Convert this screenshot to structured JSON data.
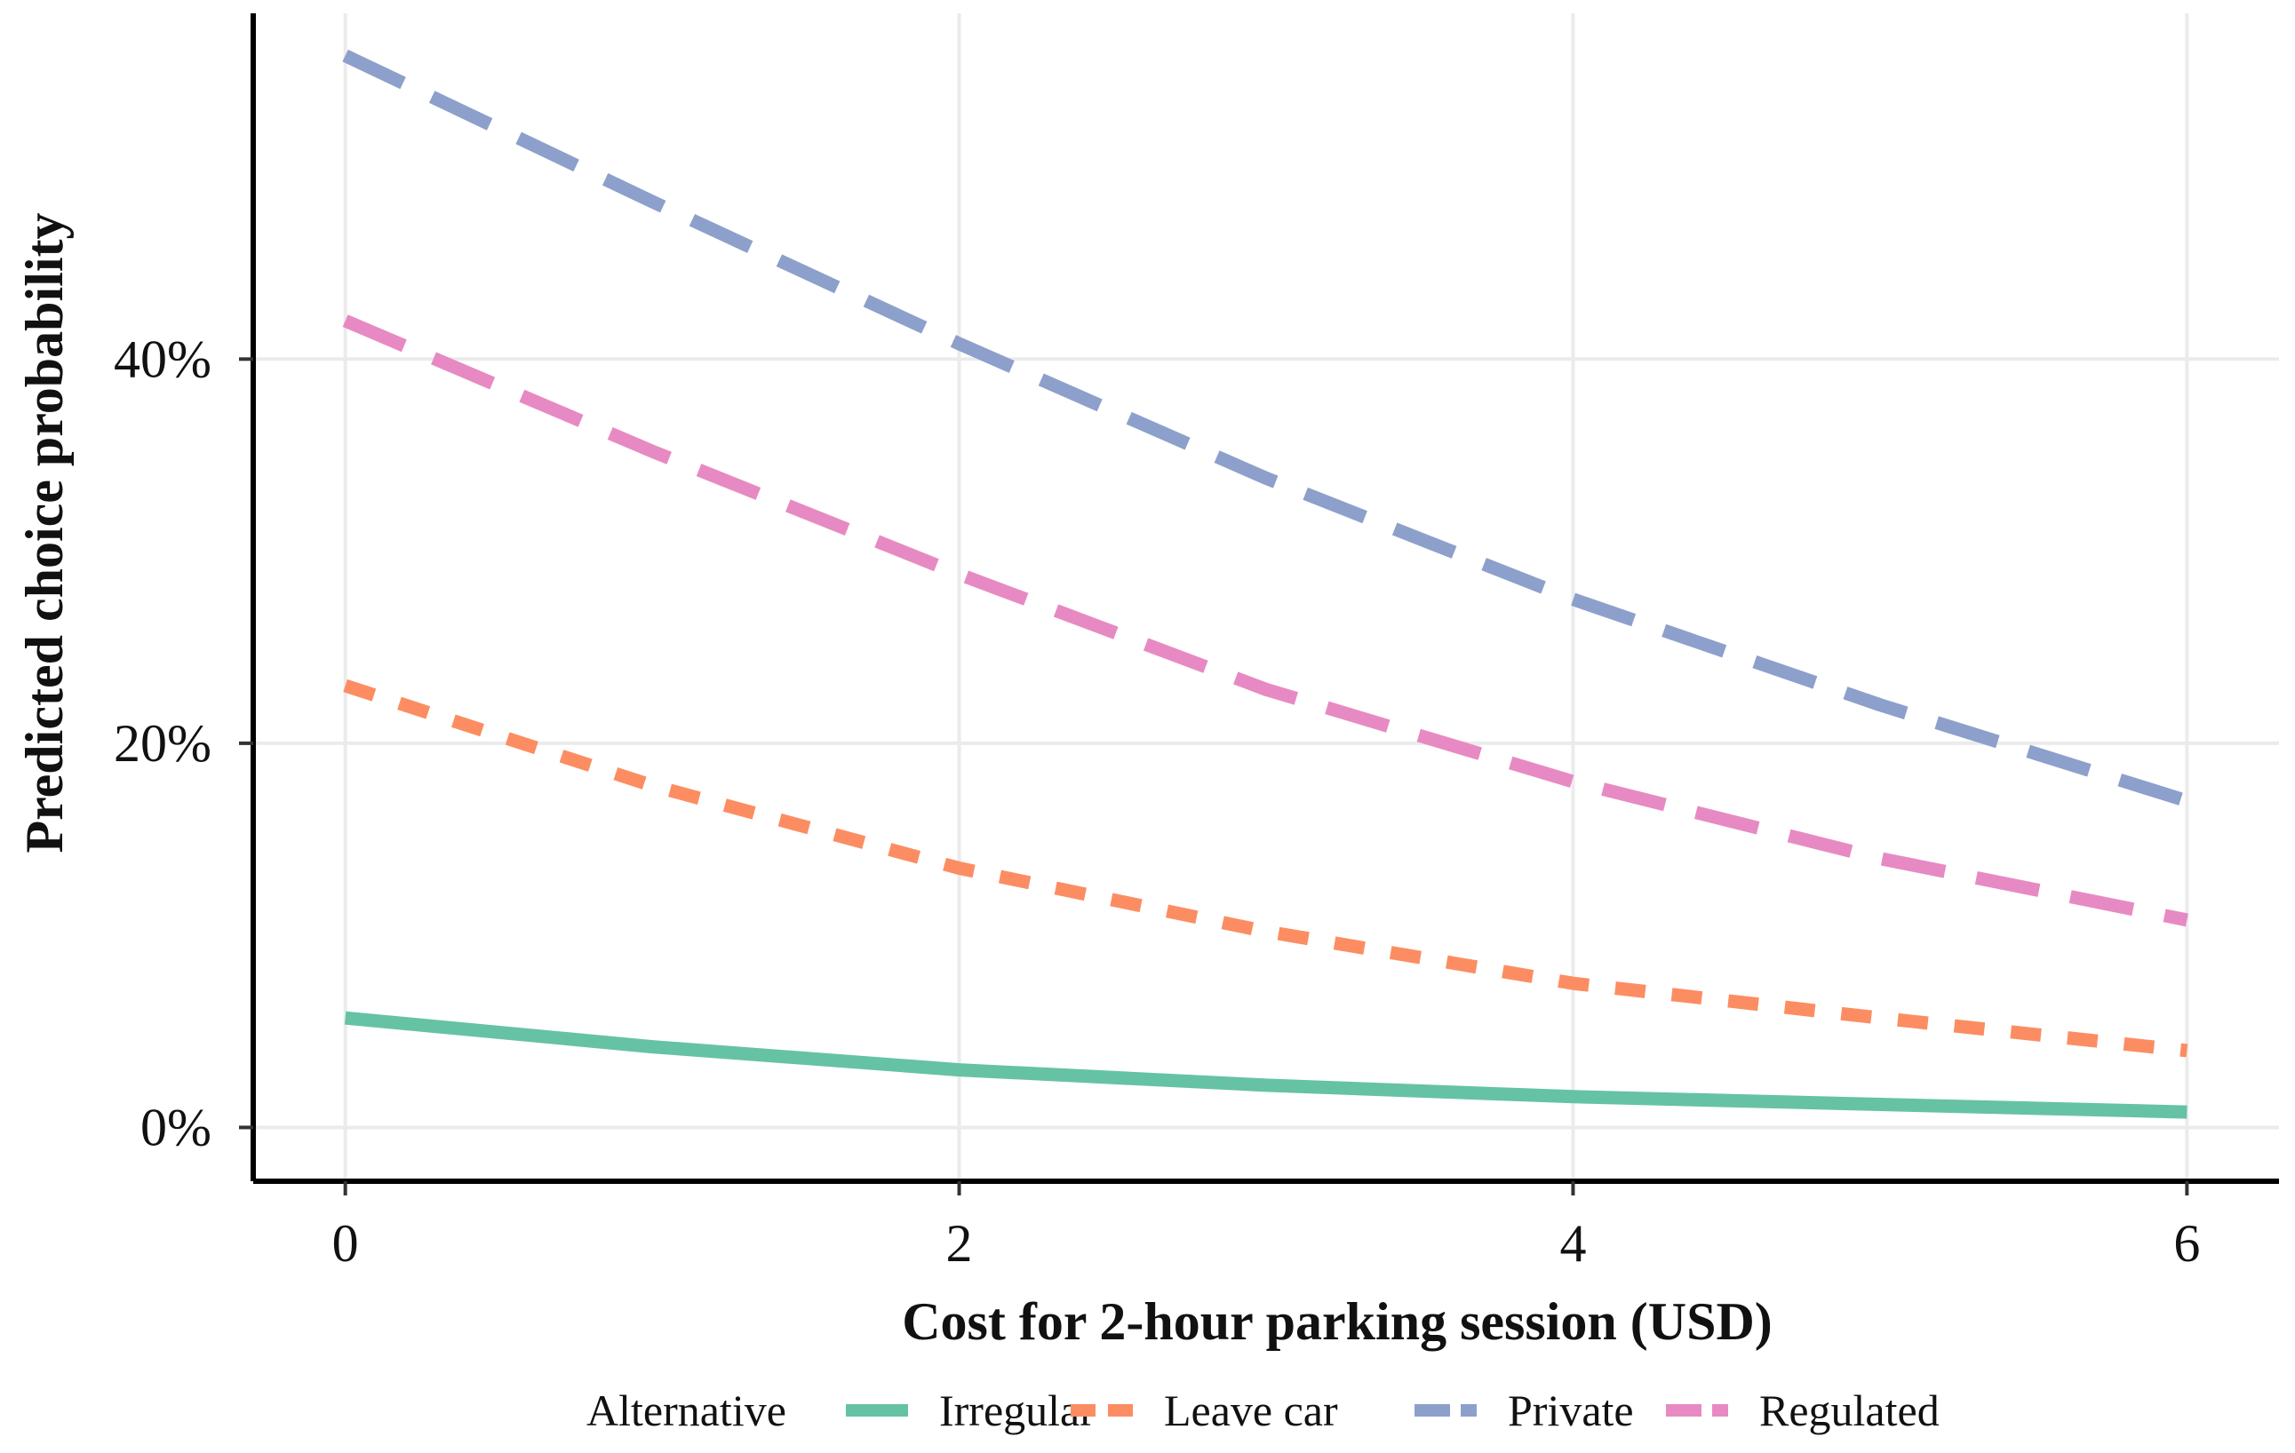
{
  "chart_data": {
    "type": "line",
    "title": "",
    "xlabel": "Cost for 2-hour parking session (USD)",
    "ylabel": "Predicted choice probability",
    "xlim": [
      -0.3,
      6.3
    ],
    "ylim": [
      -2.8,
      58
    ],
    "x_ticks": [
      0,
      2,
      4,
      6
    ],
    "x_tick_labels": [
      "0",
      "2",
      "4",
      "6"
    ],
    "y_ticks": [
      0,
      20,
      40
    ],
    "y_tick_labels": [
      "0%",
      "20%",
      "40%"
    ],
    "grid": true,
    "legend": {
      "title": "Alternative",
      "placement": "bottom"
    },
    "x": [
      0,
      1,
      2,
      3,
      4,
      5,
      6
    ],
    "series": [
      {
        "name": "Irregular",
        "color": "#66C2A5",
        "dash": "solid",
        "values": [
          5.7,
          4.2,
          3.0,
          2.2,
          1.6,
          1.2,
          0.8
        ]
      },
      {
        "name": "Leave car",
        "color": "#FC8D62",
        "dash": "short",
        "values": [
          23.0,
          17.8,
          13.5,
          10.2,
          7.5,
          5.7,
          4.0
        ]
      },
      {
        "name": "Private",
        "color": "#8DA0CB",
        "dash": "long",
        "values": [
          55.8,
          48.2,
          40.8,
          33.8,
          27.5,
          22.0,
          17.0
        ]
      },
      {
        "name": "Regulated",
        "color": "#E78AC3",
        "dash": "long",
        "values": [
          42.0,
          35.2,
          28.8,
          22.8,
          18.0,
          14.0,
          10.8
        ]
      }
    ]
  }
}
